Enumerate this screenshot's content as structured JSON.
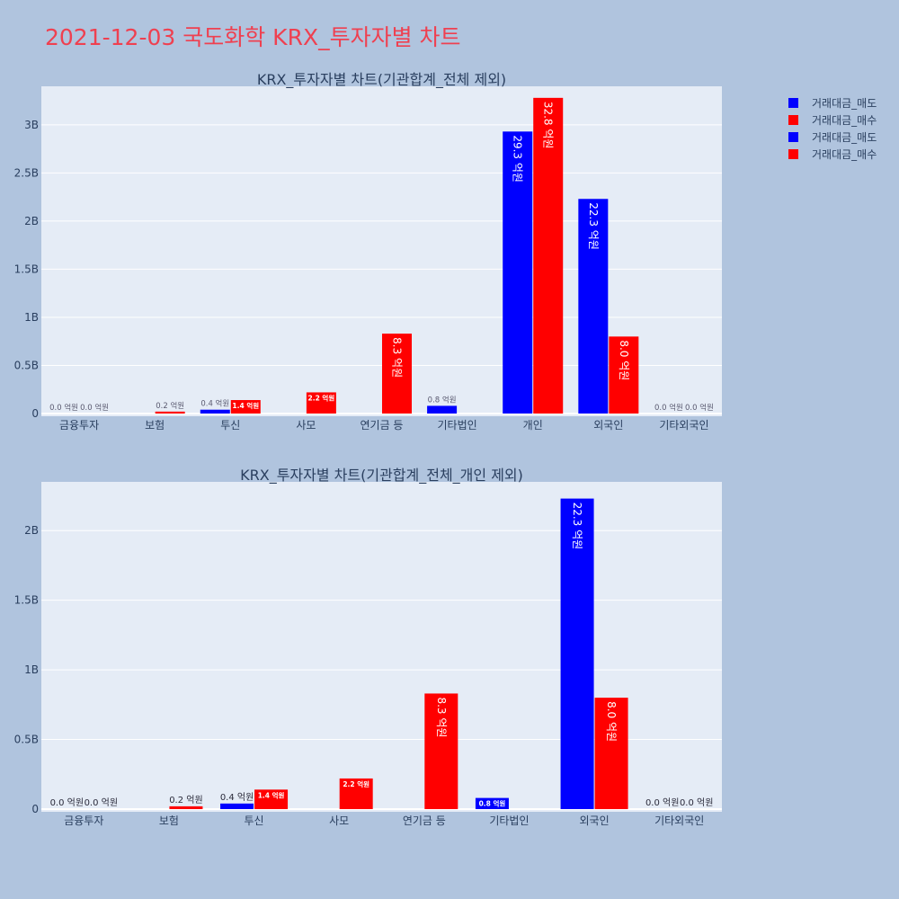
{
  "page": {
    "title": "2021-12-03 국도화학 KRX_투자자별 차트"
  },
  "legend": {
    "items": [
      {
        "label": "거래대금_매도",
        "color": "#0000ff"
      },
      {
        "label": "거래대금_매수",
        "color": "#ff0000"
      },
      {
        "label": "거래대금_매도",
        "color": "#0000ff"
      },
      {
        "label": "거래대금_매수",
        "color": "#ff0000"
      }
    ]
  },
  "chart_data": [
    {
      "type": "bar",
      "title": "KRX_투자자별 차트(기관합계_전체 제외)",
      "categories": [
        "금융투자",
        "보험",
        "투신",
        "사모",
        "연기금 등",
        "기타법인",
        "개인",
        "외국인",
        "기타외국인"
      ],
      "ylim": [
        0,
        3.4
      ],
      "ytick_values": [
        0,
        0.5,
        1,
        1.5,
        2,
        2.5,
        3
      ],
      "ytick_labels": [
        "0",
        "0.5B",
        "1B",
        "1.5B",
        "2B",
        "2.5B",
        "3B"
      ],
      "grid": true,
      "series": [
        {
          "name": "거래대금_매도",
          "color": "#0000ff",
          "values": [
            0,
            0,
            0.04,
            0,
            0,
            0.08,
            2.93,
            2.23,
            0
          ],
          "labels": [
            "0.0 억원",
            "",
            "0.4 억원",
            "",
            "",
            "0.8 억원",
            "29.3 억원",
            "22.3 억원",
            "0.0 억원"
          ]
        },
        {
          "name": "거래대금_매수",
          "color": "#ff0000",
          "values": [
            0,
            0.02,
            0.14,
            0.22,
            0.83,
            0,
            3.28,
            0.8,
            0
          ],
          "labels": [
            "0.0 억원",
            "0.2 억원",
            "1.4 억원",
            "2.2 억원",
            "8.3 억원",
            "",
            "32.8 억원",
            "8.0 억원",
            "0.0 억원"
          ]
        }
      ]
    },
    {
      "type": "bar",
      "title": "KRX_투자자별 차트(기관합계_전체_개인 제외)",
      "categories": [
        "금융투자",
        "보험",
        "투신",
        "사모",
        "연기금 등",
        "기타법인",
        "외국인",
        "기타외국인"
      ],
      "ylim": [
        0,
        2.35
      ],
      "ytick_values": [
        0,
        0.5,
        1,
        1.5,
        2
      ],
      "ytick_labels": [
        "0",
        "0.5B",
        "1B",
        "1.5B",
        "2B"
      ],
      "grid": true,
      "series": [
        {
          "name": "거래대금_매도",
          "color": "#0000ff",
          "values": [
            0,
            0,
            0.04,
            0,
            0,
            0.08,
            2.23,
            0
          ],
          "labels": [
            "0.0 억원",
            "",
            "0.4 억원",
            "",
            "",
            "0.8 억원",
            "22.3 억원",
            "0.0 억원"
          ]
        },
        {
          "name": "거래대금_매수",
          "color": "#ff0000",
          "values": [
            0,
            0.02,
            0.14,
            0.22,
            0.83,
            0,
            0.8,
            0
          ],
          "labels": [
            "0.0 억원",
            "0.2 억원",
            "1.4 억원",
            "2.2 억원",
            "8.3 억원",
            "",
            "8.0 억원",
            "0.0 억원"
          ]
        }
      ]
    }
  ]
}
